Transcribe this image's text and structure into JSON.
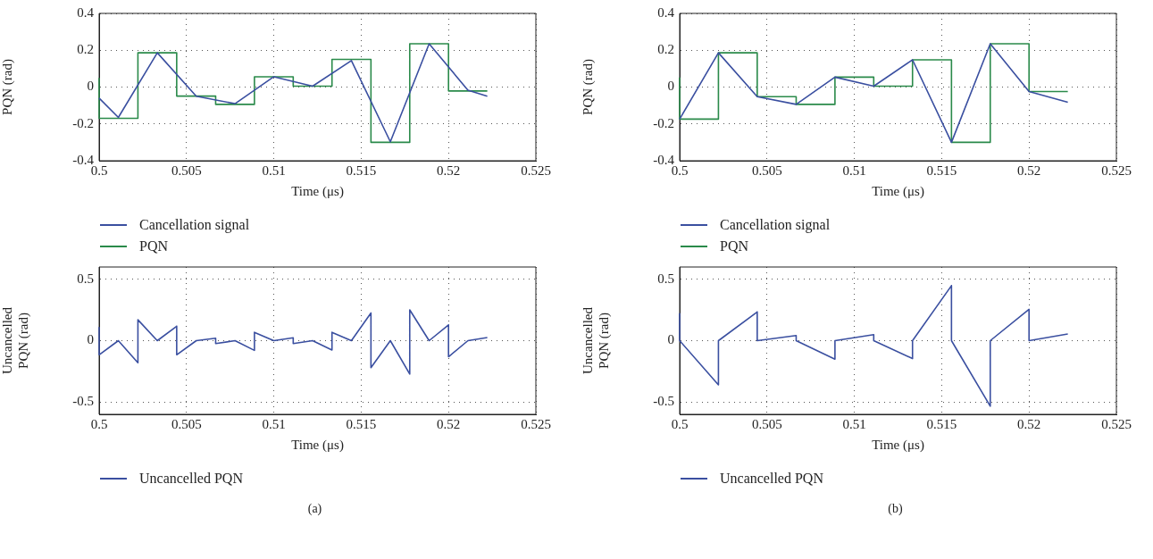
{
  "chart_data": [
    {
      "type": "line",
      "xlabel": "Time (μs)",
      "ylabel": "PQN (rad)",
      "xlim": [
        0.5,
        0.525
      ],
      "xticks": [
        0.5,
        0.505,
        0.51,
        0.515,
        0.52,
        0.525
      ],
      "ylim": [
        -0.4,
        0.4
      ],
      "yticks": [
        -0.4,
        -0.2,
        0,
        0.2,
        0.4
      ],
      "grid": true,
      "legend": "bottom",
      "marker": "none",
      "series": [
        {
          "name": "Cancellation signal",
          "color": "#3a4fa0",
          "x": [
            0.5,
            0.5011,
            0.50333,
            0.50556,
            0.50778,
            0.51,
            0.51222,
            0.51444,
            0.51667,
            0.51889,
            0.52111,
            0.52222
          ],
          "values": [
            -0.06,
            -0.165,
            0.186,
            -0.05,
            -0.09,
            0.056,
            0.005,
            0.144,
            -0.297,
            0.235,
            -0.017,
            -0.05
          ]
        },
        {
          "name": "PQN",
          "type": "step",
          "color": "#2a8a4a",
          "x": [
            0.5,
            0.5,
            0.50222,
            0.50444,
            0.50667,
            0.50889,
            0.51111,
            0.51333,
            0.51556,
            0.51778,
            0.52,
            0.52222
          ],
          "values": [
            0.05,
            -0.17,
            0.186,
            -0.049,
            -0.094,
            0.056,
            0.005,
            0.15,
            -0.3,
            0.235,
            -0.021,
            -0.021
          ]
        }
      ]
    },
    {
      "type": "line",
      "xlabel": "Time (μs)",
      "ylabel": "PQN (rad)",
      "xlim": [
        0.5,
        0.525
      ],
      "xticks": [
        0.5,
        0.505,
        0.51,
        0.515,
        0.52,
        0.525
      ],
      "ylim": [
        -0.4,
        0.4
      ],
      "yticks": [
        -0.4,
        -0.2,
        0,
        0.2,
        0.4
      ],
      "grid": true,
      "legend": "bottom",
      "marker": "none",
      "series": [
        {
          "name": "Cancellation signal",
          "color": "#3a4fa0",
          "x": [
            0.5,
            0.50222,
            0.50444,
            0.50667,
            0.50889,
            0.51111,
            0.51333,
            0.51556,
            0.51778,
            0.52,
            0.52222
          ],
          "values": [
            -0.174,
            0.186,
            -0.052,
            -0.094,
            0.054,
            0.005,
            0.148,
            -0.3,
            0.235,
            -0.024,
            -0.082
          ]
        },
        {
          "name": "PQN",
          "type": "step",
          "color": "#2a8a4a",
          "x": [
            0.5,
            0.5,
            0.50222,
            0.50444,
            0.50667,
            0.50889,
            0.51111,
            0.51333,
            0.51556,
            0.51778,
            0.52,
            0.52222
          ],
          "values": [
            0.052,
            -0.174,
            0.186,
            -0.052,
            -0.094,
            0.054,
            0.005,
            0.148,
            -0.3,
            0.235,
            -0.024,
            -0.024
          ]
        }
      ]
    },
    {
      "type": "line",
      "xlabel": "Time (μs)",
      "ylabel": "Uncancelled PQN (rad)",
      "xlim": [
        0.5,
        0.525
      ],
      "xticks": [
        0.5,
        0.505,
        0.51,
        0.515,
        0.52,
        0.525
      ],
      "ylim": [
        -0.6,
        0.6
      ],
      "yticks": [
        -0.5,
        0,
        0.5
      ],
      "grid": true,
      "legend": "bottom",
      "marker": "none",
      "annotations": [
        "(a)"
      ],
      "series": [
        {
          "name": "Uncancelled PQN",
          "color": "#3a4fa0",
          "x": [
            0.5,
            0.5,
            0.5011,
            0.50222,
            0.50222,
            0.50333,
            0.50444,
            0.50444,
            0.50556,
            0.50667,
            0.50667,
            0.50778,
            0.50889,
            0.50889,
            0.51,
            0.51111,
            0.51111,
            0.51222,
            0.51333,
            0.51333,
            0.51444,
            0.51556,
            0.51556,
            0.51667,
            0.51778,
            0.51778,
            0.51889,
            0.52,
            0.52,
            0.52111,
            0.52222
          ],
          "values": [
            0.107,
            -0.115,
            0,
            -0.18,
            0.17,
            0,
            0.118,
            -0.115,
            0,
            0.02,
            -0.024,
            0,
            -0.079,
            0.068,
            0,
            0.024,
            -0.024,
            0,
            -0.076,
            0.068,
            0,
            0.225,
            -0.22,
            0,
            -0.272,
            0.251,
            0,
            0.128,
            -0.131,
            0,
            0.026
          ]
        }
      ]
    },
    {
      "type": "line",
      "xlabel": "Time (μs)",
      "ylabel": "Uncancelled PQN (rad)",
      "xlim": [
        0.5,
        0.525
      ],
      "xticks": [
        0.5,
        0.505,
        0.51,
        0.515,
        0.52,
        0.525
      ],
      "ylim": [
        -0.6,
        0.6
      ],
      "yticks": [
        -0.5,
        0,
        0.5
      ],
      "grid": true,
      "legend": "bottom",
      "marker": "none",
      "annotations": [
        "(b)"
      ],
      "series": [
        {
          "name": "Uncancelled PQN",
          "color": "#3a4fa0",
          "x": [
            0.5,
            0.5,
            0.50222,
            0.50222,
            0.50444,
            0.50444,
            0.50667,
            0.50667,
            0.50889,
            0.50889,
            0.51111,
            0.51111,
            0.51333,
            0.51333,
            0.51556,
            0.51556,
            0.51778,
            0.51778,
            0.52,
            0.52,
            0.52222
          ],
          "values": [
            0.22,
            0,
            -0.36,
            0,
            0.234,
            0,
            0.042,
            0,
            -0.151,
            0,
            0.049,
            0,
            -0.146,
            0,
            0.448,
            0,
            -0.534,
            0,
            0.255,
            0,
            0.055
          ]
        }
      ]
    }
  ]
}
